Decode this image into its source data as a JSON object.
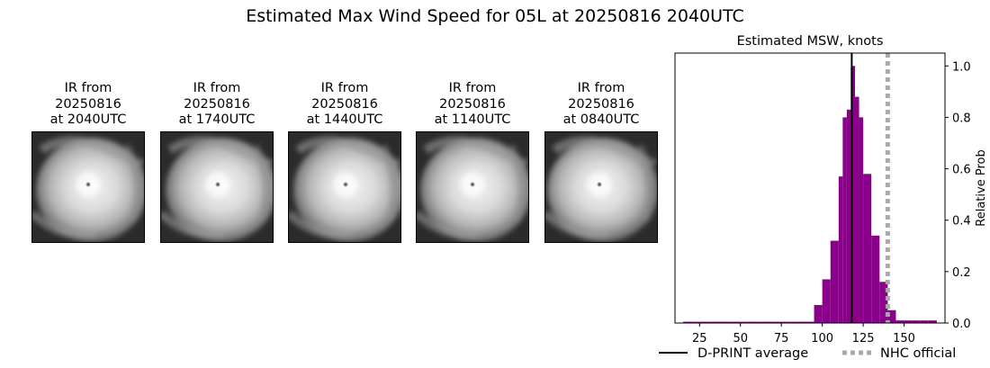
{
  "title": "Estimated Max Wind Speed for 05L at 20250816 2040UTC",
  "panels": [
    {
      "line1": "IR from",
      "line2": "20250816",
      "line3": "at 2040UTC"
    },
    {
      "line1": "IR from",
      "line2": "20250816",
      "line3": "at 1740UTC"
    },
    {
      "line1": "IR from",
      "line2": "20250816",
      "line3": "at 1440UTC"
    },
    {
      "line1": "IR from",
      "line2": "20250816",
      "line3": "at 1140UTC"
    },
    {
      "line1": "IR from",
      "line2": "20250816",
      "line3": "at 0840UTC"
    }
  ],
  "chart_data": {
    "type": "bar",
    "title": "Estimated MSW, knots",
    "xlabel": "",
    "ylabel": "Relative Prob",
    "y_axis_side": "right",
    "xlim": [
      10,
      175
    ],
    "ylim": [
      0,
      1.05
    ],
    "xticks": [
      25,
      50,
      75,
      100,
      125,
      150
    ],
    "yticks": [
      0.0,
      0.2,
      0.4,
      0.6,
      0.8,
      1.0
    ],
    "bin_width": 5,
    "bar_color": "#8b008b",
    "bins": [
      {
        "x": 15,
        "value": 0.005
      },
      {
        "x": 20,
        "value": 0.005
      },
      {
        "x": 25,
        "value": 0.005
      },
      {
        "x": 30,
        "value": 0.005
      },
      {
        "x": 35,
        "value": 0.005
      },
      {
        "x": 40,
        "value": 0.005
      },
      {
        "x": 45,
        "value": 0.005
      },
      {
        "x": 50,
        "value": 0.005
      },
      {
        "x": 55,
        "value": 0.005
      },
      {
        "x": 60,
        "value": 0.005
      },
      {
        "x": 65,
        "value": 0.005
      },
      {
        "x": 70,
        "value": 0.005
      },
      {
        "x": 75,
        "value": 0.005
      },
      {
        "x": 80,
        "value": 0.005
      },
      {
        "x": 85,
        "value": 0.005
      },
      {
        "x": 90,
        "value": 0.005
      },
      {
        "x": 95,
        "value": 0.07
      },
      {
        "x": 100,
        "value": 0.17
      },
      {
        "x": 105,
        "value": 0.32
      },
      {
        "x": 110,
        "value": 0.57
      },
      {
        "x": 112.5,
        "value": 0.8
      },
      {
        "x": 115,
        "value": 0.83
      },
      {
        "x": 117.5,
        "value": 1.0
      },
      {
        "x": 120,
        "value": 0.88
      },
      {
        "x": 122.5,
        "value": 0.8
      },
      {
        "x": 125,
        "value": 0.58
      },
      {
        "x": 130,
        "value": 0.34
      },
      {
        "x": 135,
        "value": 0.16
      },
      {
        "x": 140,
        "value": 0.05
      },
      {
        "x": 145,
        "value": 0.01
      },
      {
        "x": 150,
        "value": 0.01
      },
      {
        "x": 155,
        "value": 0.01
      },
      {
        "x": 160,
        "value": 0.01
      },
      {
        "x": 165,
        "value": 0.01
      }
    ],
    "lines": [
      {
        "name": "D-PRINT average",
        "x": 118,
        "color": "#000000",
        "style": "solid"
      },
      {
        "name": "NHC official",
        "x": 140,
        "color": "#a9a9a9",
        "style": "dotted"
      }
    ],
    "legend_position": "bottom"
  }
}
